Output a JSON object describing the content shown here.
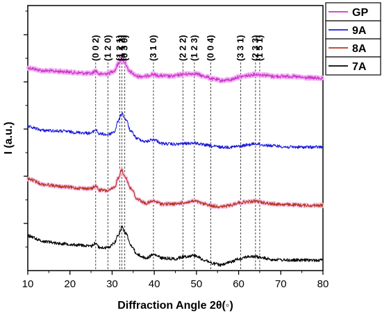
{
  "chart_data": {
    "type": "line",
    "xlabel": "Diffraction Angle 2θ(◦)",
    "ylabel": "I (a.u.)",
    "xlim": [
      10,
      80
    ],
    "x_ticks": [
      10,
      20,
      30,
      40,
      50,
      60,
      70,
      80
    ],
    "y_tick_labels_shown": false,
    "legend_position": "top-right",
    "series": [
      {
        "name": "GP",
        "color": "#cc33cc",
        "points": [
          [
            10,
            98
          ],
          [
            14,
            102
          ],
          [
            18,
            103
          ],
          [
            22,
            105
          ],
          [
            25,
            106
          ],
          [
            26.1,
            102
          ],
          [
            27,
            107
          ],
          [
            29,
            106
          ],
          [
            30.5,
            102
          ],
          [
            31.5,
            92
          ],
          [
            32.2,
            84
          ],
          [
            33,
            90
          ],
          [
            34,
            103
          ],
          [
            36,
            110
          ],
          [
            38,
            110
          ],
          [
            39.5,
            107
          ],
          [
            41,
            109
          ],
          [
            44,
            110
          ],
          [
            47,
            107
          ],
          [
            49.5,
            106
          ],
          [
            52,
            110
          ],
          [
            54,
            114
          ],
          [
            56,
            116
          ],
          [
            58,
            115
          ],
          [
            60,
            111
          ],
          [
            62,
            109
          ],
          [
            64,
            107
          ],
          [
            66,
            108
          ],
          [
            68,
            110
          ],
          [
            72,
            110
          ],
          [
            76,
            112
          ],
          [
            80,
            113
          ]
        ]
      },
      {
        "name": "9A",
        "color": "#1a1ad9",
        "points": [
          [
            10,
            183
          ],
          [
            14,
            188
          ],
          [
            18,
            189
          ],
          [
            22,
            191
          ],
          [
            25,
            192
          ],
          [
            26.1,
            187
          ],
          [
            27,
            193
          ],
          [
            29,
            194
          ],
          [
            30.5,
            190
          ],
          [
            31.5,
            174
          ],
          [
            32.3,
            163
          ],
          [
            33.2,
            172
          ],
          [
            34.5,
            190
          ],
          [
            36,
            200
          ],
          [
            38,
            204
          ],
          [
            39.8,
            201
          ],
          [
            42,
            207
          ],
          [
            45,
            208
          ],
          [
            47,
            207
          ],
          [
            49.5,
            206
          ],
          [
            52,
            209
          ],
          [
            54,
            211
          ],
          [
            56,
            212
          ],
          [
            58,
            212
          ],
          [
            60,
            211
          ],
          [
            62,
            209
          ],
          [
            64,
            207
          ],
          [
            66,
            209
          ],
          [
            68,
            210
          ],
          [
            72,
            212
          ],
          [
            76,
            212
          ],
          [
            80,
            212
          ]
        ]
      },
      {
        "name": "8A",
        "color": "#b5351a",
        "points": [
          [
            10,
            258
          ],
          [
            14,
            266
          ],
          [
            18,
            269
          ],
          [
            22,
            271
          ],
          [
            25,
            272
          ],
          [
            26.1,
            268
          ],
          [
            27,
            274
          ],
          [
            29,
            275
          ],
          [
            30.5,
            271
          ],
          [
            31.5,
            256
          ],
          [
            32.2,
            245
          ],
          [
            33,
            254
          ],
          [
            34.5,
            272
          ],
          [
            36,
            287
          ],
          [
            38,
            293
          ],
          [
            39.8,
            290
          ],
          [
            42,
            294
          ],
          [
            45,
            294
          ],
          [
            47,
            292
          ],
          [
            49.5,
            290
          ],
          [
            52,
            294
          ],
          [
            54,
            297
          ],
          [
            56,
            298
          ],
          [
            58,
            296
          ],
          [
            60,
            292
          ],
          [
            62,
            291
          ],
          [
            64,
            290
          ],
          [
            66,
            292
          ],
          [
            68,
            294
          ],
          [
            72,
            295
          ],
          [
            76,
            296
          ],
          [
            80,
            296
          ]
        ]
      },
      {
        "name": "7A",
        "color": "#000000",
        "points": [
          [
            10,
            340
          ],
          [
            14,
            348
          ],
          [
            18,
            351
          ],
          [
            22,
            353
          ],
          [
            25,
            355
          ],
          [
            26.1,
            350
          ],
          [
            27,
            357
          ],
          [
            29,
            357
          ],
          [
            30.5,
            350
          ],
          [
            31.5,
            338
          ],
          [
            32.3,
            327
          ],
          [
            33.2,
            336
          ],
          [
            34.5,
            354
          ],
          [
            36,
            367
          ],
          [
            38,
            372
          ],
          [
            39.8,
            367
          ],
          [
            42,
            372
          ],
          [
            45,
            373
          ],
          [
            47,
            370
          ],
          [
            49.5,
            368
          ],
          [
            52,
            375
          ],
          [
            54,
            380
          ],
          [
            56,
            382
          ],
          [
            58,
            378
          ],
          [
            60,
            373
          ],
          [
            62,
            370
          ],
          [
            64,
            370
          ],
          [
            66,
            372
          ],
          [
            68,
            374
          ],
          [
            72,
            375
          ],
          [
            76,
            375
          ],
          [
            80,
            375
          ]
        ]
      }
    ],
    "reference_lines": [
      {
        "x": 26.1,
        "label": "(0 0 2)"
      },
      {
        "x": 29.0,
        "label": "(1 2 0)"
      },
      {
        "x": 31.8,
        "label": "(1 2 1)"
      },
      {
        "x": 32.3,
        "label": "(1 1 2)"
      },
      {
        "x": 33.0,
        "label": "(0 3 0)"
      },
      {
        "x": 39.8,
        "label": "(3 1 0)"
      },
      {
        "x": 46.8,
        "label": "(2 2 2)"
      },
      {
        "x": 49.5,
        "label": "(1 2 3)"
      },
      {
        "x": 53.4,
        "label": "(0 0 4)"
      },
      {
        "x": 60.5,
        "label": "(3 3 1)"
      },
      {
        "x": 64.0,
        "label": "(2 3 3)"
      },
      {
        "x": 65.0,
        "label": "(1 5 1)"
      }
    ]
  }
}
